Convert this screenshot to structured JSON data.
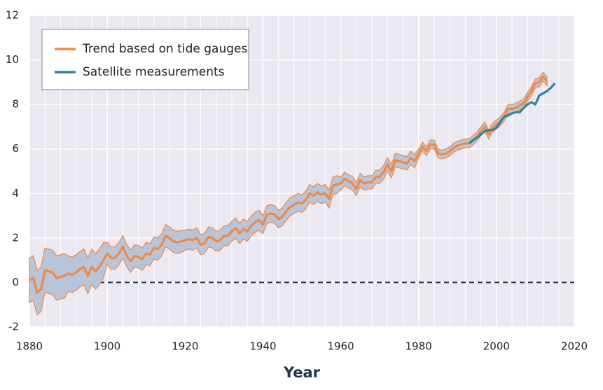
{
  "chart_data": {
    "type": "line",
    "x_label": "Year",
    "xlim": [
      1880,
      2020
    ],
    "xticks": [
      1880,
      1900,
      1920,
      1940,
      1960,
      1980,
      2000,
      2020
    ],
    "ylim": [
      -2,
      12
    ],
    "yticks": [
      -2,
      0,
      2,
      4,
      6,
      8,
      10,
      12
    ],
    "grid": true,
    "legend": "top-left",
    "band_color": "#b8c4d8",
    "hline": {
      "value": 0,
      "from": 1898
    },
    "series": [
      {
        "name": "Trend based on tide gauges",
        "color": "#ef8a45",
        "x": [
          1880,
          1881,
          1882,
          1883,
          1884,
          1885,
          1886,
          1887,
          1888,
          1889,
          1890,
          1891,
          1892,
          1893,
          1894,
          1895,
          1896,
          1897,
          1898,
          1899,
          1900,
          1901,
          1902,
          1903,
          1904,
          1905,
          1906,
          1907,
          1908,
          1909,
          1910,
          1911,
          1912,
          1913,
          1914,
          1915,
          1916,
          1917,
          1918,
          1919,
          1920,
          1921,
          1922,
          1923,
          1924,
          1925,
          1926,
          1927,
          1928,
          1929,
          1930,
          1931,
          1932,
          1933,
          1934,
          1935,
          1936,
          1937,
          1938,
          1939,
          1940,
          1941,
          1942,
          1943,
          1944,
          1945,
          1946,
          1947,
          1948,
          1949,
          1950,
          1951,
          1952,
          1953,
          1954,
          1955,
          1956,
          1957,
          1958,
          1959,
          1960,
          1961,
          1962,
          1963,
          1964,
          1965,
          1966,
          1967,
          1968,
          1969,
          1970,
          1971,
          1972,
          1973,
          1974,
          1975,
          1976,
          1977,
          1978,
          1979,
          1980,
          1981,
          1982,
          1983,
          1984,
          1985,
          1986,
          1987,
          1988,
          1989,
          1990,
          1991,
          1992,
          1993,
          1994,
          1995,
          1996,
          1997,
          1998,
          1999,
          2000,
          2001,
          2002,
          2003,
          2004,
          2005,
          2006,
          2007,
          2008,
          2009,
          2010,
          2011,
          2012,
          2013
        ],
        "values": [
          0.1,
          0.2,
          -0.45,
          -0.3,
          0.55,
          0.5,
          0.45,
          0.2,
          0.25,
          0.3,
          0.4,
          0.35,
          0.45,
          0.6,
          0.7,
          0.3,
          0.7,
          0.5,
          0.7,
          1.0,
          1.3,
          1.1,
          1.1,
          1.3,
          1.6,
          1.2,
          0.95,
          1.2,
          1.15,
          1.05,
          1.3,
          1.25,
          1.55,
          1.5,
          1.7,
          2.1,
          2.0,
          1.85,
          1.8,
          1.85,
          1.9,
          1.95,
          1.9,
          2.0,
          1.7,
          1.75,
          2.05,
          2.0,
          1.85,
          1.9,
          2.1,
          2.1,
          2.3,
          2.45,
          2.2,
          2.4,
          2.3,
          2.55,
          2.7,
          2.8,
          2.6,
          3.05,
          3.1,
          3.05,
          2.85,
          2.95,
          3.2,
          3.4,
          3.5,
          3.6,
          3.55,
          3.7,
          4.0,
          3.9,
          4.05,
          3.95,
          4.0,
          3.75,
          4.35,
          4.4,
          4.45,
          4.65,
          4.55,
          4.45,
          4.2,
          4.6,
          4.45,
          4.5,
          4.5,
          4.75,
          4.75,
          4.95,
          5.3,
          5.0,
          5.5,
          5.45,
          5.4,
          5.35,
          5.6,
          5.45,
          5.8,
          6.1,
          5.9,
          6.2,
          6.2,
          5.8,
          5.75,
          5.8,
          5.9,
          6.05,
          6.15,
          6.2,
          6.25,
          6.25,
          6.4,
          6.55,
          6.8,
          7.0,
          6.65,
          6.95,
          7.1,
          7.25,
          7.45,
          7.8,
          7.8,
          7.85,
          7.95,
          8.05,
          8.35,
          8.6,
          8.95,
          9.0,
          9.25,
          9.05
        ],
        "errors": [
          1.0,
          1.0,
          1.0,
          1.0,
          1.0,
          1.0,
          1.0,
          1.0,
          1.0,
          1.0,
          0.8,
          0.8,
          0.8,
          0.8,
          0.8,
          0.8,
          0.8,
          0.8,
          0.8,
          0.8,
          0.5,
          0.5,
          0.5,
          0.5,
          0.5,
          0.5,
          0.5,
          0.5,
          0.5,
          0.5,
          0.5,
          0.5,
          0.5,
          0.5,
          0.5,
          0.5,
          0.5,
          0.5,
          0.5,
          0.5,
          0.45,
          0.45,
          0.45,
          0.45,
          0.45,
          0.45,
          0.45,
          0.45,
          0.45,
          0.45,
          0.45,
          0.45,
          0.45,
          0.45,
          0.45,
          0.45,
          0.45,
          0.45,
          0.45,
          0.45,
          0.4,
          0.4,
          0.4,
          0.4,
          0.4,
          0.4,
          0.4,
          0.4,
          0.4,
          0.4,
          0.4,
          0.4,
          0.4,
          0.4,
          0.4,
          0.4,
          0.4,
          0.4,
          0.4,
          0.4,
          0.3,
          0.3,
          0.3,
          0.3,
          0.3,
          0.3,
          0.3,
          0.3,
          0.3,
          0.3,
          0.3,
          0.3,
          0.3,
          0.3,
          0.3,
          0.3,
          0.3,
          0.3,
          0.3,
          0.3,
          0.2,
          0.2,
          0.2,
          0.2,
          0.2,
          0.2,
          0.2,
          0.2,
          0.2,
          0.2,
          0.2,
          0.2,
          0.2,
          0.2,
          0.2,
          0.2,
          0.2,
          0.2,
          0.2,
          0.2,
          0.2,
          0.2,
          0.2,
          0.2,
          0.2,
          0.2,
          0.2,
          0.2,
          0.2,
          0.2,
          0.2,
          0.2,
          0.2,
          0.2
        ]
      },
      {
        "name": "Satellite measurements",
        "color": "#2b8798",
        "x": [
          1993,
          1994,
          1995,
          1996,
          1997,
          1998,
          1999,
          2000,
          2001,
          2002,
          2003,
          2004,
          2005,
          2006,
          2007,
          2008,
          2009,
          2010,
          2011,
          2012,
          2013,
          2014,
          2015
        ],
        "values": [
          6.25,
          6.4,
          6.5,
          6.65,
          6.8,
          6.85,
          6.85,
          6.95,
          7.2,
          7.45,
          7.5,
          7.6,
          7.65,
          7.65,
          7.85,
          8.0,
          8.1,
          8.0,
          8.4,
          8.5,
          8.6,
          8.75,
          8.95
        ]
      }
    ]
  }
}
